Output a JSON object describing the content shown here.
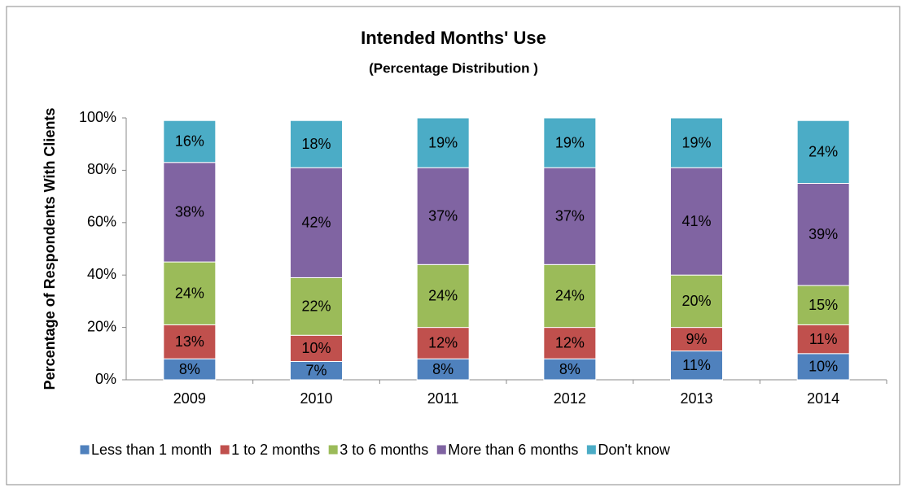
{
  "chart_data": {
    "type": "stacked_bar",
    "title": "Intended Months' Use",
    "subtitle": "(Percentage Distribution )",
    "y_label": "Percentage of Respondents With Clients",
    "categories": [
      "2009",
      "2010",
      "2011",
      "2012",
      "2013",
      "2014"
    ],
    "series": [
      {
        "name": "Less than 1 month",
        "color": "#4f81bd",
        "values": [
          8,
          7,
          8,
          8,
          11,
          10
        ],
        "value_labels": [
          "8%",
          "7%",
          "8%",
          "8%",
          "11%",
          "10%"
        ]
      },
      {
        "name": "1 to 2 months",
        "color": "#c0504d",
        "values": [
          13,
          10,
          12,
          12,
          9,
          11
        ],
        "value_labels": [
          "13%",
          "10%",
          "12%",
          "12%",
          "9%",
          "11%"
        ]
      },
      {
        "name": "3 to 6 months",
        "color": "#9bbb59",
        "values": [
          24,
          22,
          24,
          24,
          20,
          15
        ],
        "value_labels": [
          "24%",
          "22%",
          "24%",
          "24%",
          "20%",
          "15%"
        ]
      },
      {
        "name": "More than 6 months",
        "color": "#8064a2",
        "values": [
          38,
          42,
          37,
          37,
          41,
          39
        ],
        "value_labels": [
          "38%",
          "42%",
          "37%",
          "37%",
          "41%",
          "39%"
        ]
      },
      {
        "name": "Don't know",
        "color": "#4bacc6",
        "values": [
          16,
          18,
          19,
          19,
          19,
          24
        ],
        "value_labels": [
          "16%",
          "18%",
          "19%",
          "19%",
          "19%",
          "24%"
        ]
      }
    ],
    "ylim": [
      0,
      100
    ],
    "yticks": [
      {
        "value": 0,
        "label": "0%"
      },
      {
        "value": 20,
        "label": "20%"
      },
      {
        "value": 40,
        "label": "40%"
      },
      {
        "value": 60,
        "label": "60%"
      },
      {
        "value": 80,
        "label": "80%"
      },
      {
        "value": 100,
        "label": "100%"
      }
    ],
    "grid": false,
    "legend": "bottom"
  }
}
